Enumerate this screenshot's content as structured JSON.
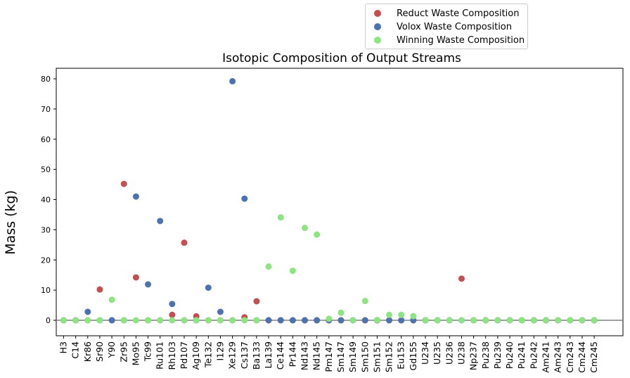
{
  "chart_data": {
    "type": "scatter",
    "title": "Isotopic Composition of Output Streams",
    "xlabel": "",
    "ylabel": "Mass (kg)",
    "ylim": [
      -5,
      84
    ],
    "yticks": [
      0,
      10,
      20,
      30,
      40,
      50,
      60,
      70,
      80
    ],
    "grid": false,
    "legend_position": "top-right, above plot",
    "reference_line_y": 0,
    "categories": [
      "H3",
      "C14",
      "Kr86",
      "Sr90",
      "Y90",
      "Zr95",
      "Mo95",
      "Tc99",
      "Ru101",
      "Rh103",
      "Pd107",
      "Ag109",
      "Te132",
      "I129",
      "Xe129",
      "Cs137",
      "Ba133",
      "La139",
      "Ce144",
      "Pr144",
      "Nd143",
      "Nd145",
      "Pm147",
      "Sm147",
      "Sm149",
      "Sm150",
      "Sm151",
      "Sm152",
      "Eu153",
      "Gd155",
      "U234",
      "U235",
      "U236",
      "U238",
      "Np237",
      "Pu238",
      "Pu239",
      "Pu240",
      "Pu241",
      "Pu242",
      "Am241",
      "Am243",
      "Cm243",
      "Cm244",
      "Cm245"
    ],
    "series": [
      {
        "name": "Reduct Waste Composition",
        "color": "#c44e52",
        "values": [
          0,
          0,
          0,
          10.2,
          0,
          45.2,
          14.2,
          0,
          0,
          1.8,
          25.7,
          1.3,
          0,
          0,
          0,
          1.0,
          6.3,
          0,
          0,
          0,
          0,
          0,
          0,
          0,
          0,
          0,
          0,
          0,
          0,
          0,
          0,
          0,
          0,
          13.8,
          0,
          0,
          0,
          0,
          0,
          0,
          0,
          0,
          0,
          0,
          0
        ]
      },
      {
        "name": "Volox Waste Composition",
        "color": "#4c72b0",
        "values": [
          0,
          0,
          2.8,
          0,
          0,
          0,
          41.0,
          11.9,
          32.9,
          5.4,
          0,
          0,
          10.8,
          2.8,
          79.2,
          40.3,
          0,
          0,
          0,
          0,
          0,
          0,
          0,
          0,
          0,
          0,
          0,
          0,
          0,
          0,
          0,
          0,
          0,
          0,
          0,
          0,
          0,
          0,
          0,
          0,
          0,
          0,
          0,
          0,
          0
        ]
      },
      {
        "name": "Winning Waste Composition",
        "color": "#8de582",
        "values": [
          0,
          0,
          0,
          0,
          6.8,
          0,
          0,
          0,
          0,
          0,
          0,
          0,
          0,
          0,
          0,
          0,
          0,
          17.8,
          34.1,
          16.4,
          30.6,
          28.4,
          0.5,
          2.5,
          0,
          6.4,
          0.1,
          1.8,
          1.8,
          1.4,
          0,
          0,
          0,
          0,
          0,
          0,
          0,
          0,
          0,
          0,
          0,
          0,
          0,
          0,
          0
        ]
      }
    ]
  },
  "legend": {
    "items": [
      {
        "label": "Reduct Waste Composition",
        "color": "#c44e52"
      },
      {
        "label": "Volox Waste Composition",
        "color": "#4c72b0"
      },
      {
        "label": "Winning Waste Composition",
        "color": "#8de582"
      }
    ]
  }
}
